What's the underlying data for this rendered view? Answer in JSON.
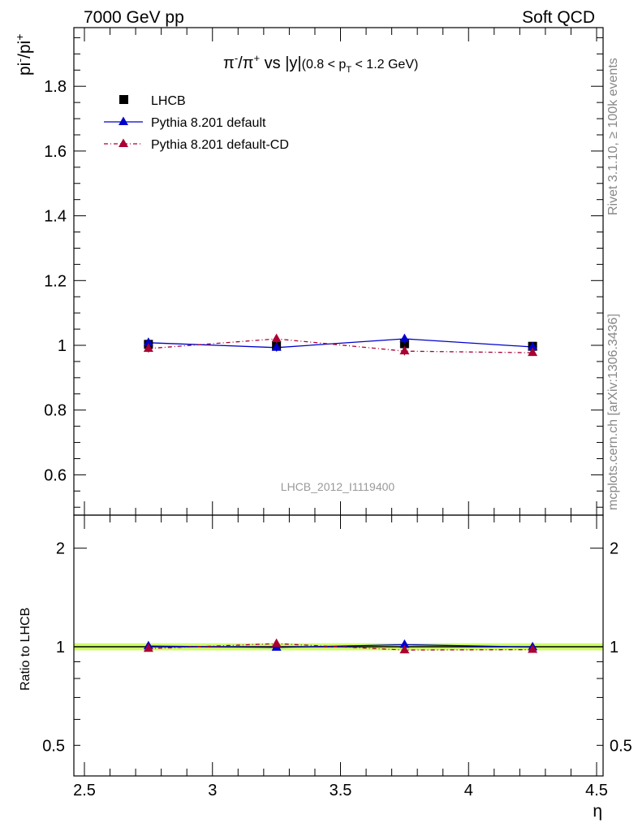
{
  "header": {
    "left": "7000 GeV pp",
    "right": "Soft QCD"
  },
  "side": {
    "rivet": "Rivet 3.1.10, ≥ 100k events",
    "mcplots": "mcplots.cern.ch [arXiv:1306.3436]"
  },
  "colors": {
    "data": "#000000",
    "default": "#0000cc",
    "default_cd": "#aa0033",
    "band": "#ccff66"
  },
  "chart_data": [
    {
      "type": "line",
      "title": "π⁻/π⁺ vs |y|",
      "title_parts": {
        "main_a": "π",
        "sup_a": "-",
        "main_b": "/π",
        "sup_b": "+",
        "main_c": " vs |y|",
        "cut_a": "(0.8 < p",
        "cut_sub": "T",
        "cut_b": " < 1.2 GeV)"
      },
      "ylabel": "pi⁻/pi⁺",
      "ylabel_parts": {
        "a": "pi",
        "sup_a": "-",
        "b": "/pi",
        "sup_b": "+"
      },
      "watermark": "LHCB_2012_I1119400",
      "xlim": [
        2.5,
        4.5
      ],
      "ylim": [
        0.5,
        2.0
      ],
      "y_ticks": [
        "0.6",
        "0.8",
        "1",
        "1.2",
        "1.4",
        "1.6",
        "1.8"
      ],
      "x": [
        2.75,
        3.25,
        3.75,
        4.25
      ],
      "series": [
        {
          "name": "LHCB",
          "values": [
            1.003,
            0.998,
            1.005,
            0.997
          ],
          "err": [
            0.012,
            0.012,
            0.013,
            0.008
          ]
        },
        {
          "name": "Pythia 8.201 default",
          "values": [
            1.008,
            0.993,
            1.02,
            0.995
          ],
          "err": [
            0.012,
            0.012,
            0.013,
            0.008
          ]
        },
        {
          "name": "Pythia 8.201 default-CD",
          "values": [
            0.99,
            1.02,
            0.982,
            0.977
          ],
          "err": [
            0.012,
            0.012,
            0.013,
            0.008
          ]
        }
      ],
      "legend": "top-left"
    },
    {
      "type": "line",
      "ylabel": "Ratio to LHCB",
      "xlabel": "η",
      "xlim": [
        2.5,
        4.5
      ],
      "ylim": [
        0.4,
        2.3
      ],
      "y_ticks": [
        "0.5",
        "1",
        "2"
      ],
      "x_ticks": [
        "2.5",
        "3",
        "3.5",
        "4",
        "4.5"
      ],
      "x": [
        2.75,
        3.25,
        3.75,
        4.25
      ],
      "band": [
        0.975,
        1.025
      ],
      "series": [
        {
          "name": "Pythia 8.201 default",
          "values": [
            1.005,
            0.995,
            1.015,
            0.998
          ]
        },
        {
          "name": "Pythia 8.201 default-CD",
          "values": [
            0.987,
            1.022,
            0.977,
            0.98
          ]
        }
      ]
    }
  ]
}
